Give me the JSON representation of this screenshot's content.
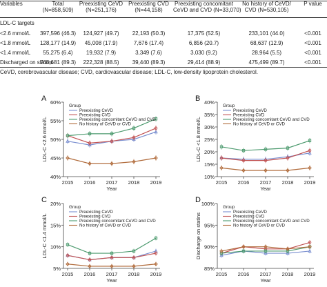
{
  "table": {
    "headers": [
      [
        "Variables"
      ],
      [
        "Total",
        "(N=858,509)"
      ],
      [
        "Preexisting CeVD",
        "(N=251,176)"
      ],
      [
        "Preexisting CVD",
        "(N=44,158)"
      ],
      [
        "Preexisting concomitant",
        "CeVD and CVD (N=33,070)"
      ],
      [
        "No history of CeVD/",
        "CVD (N=530,105)"
      ],
      [
        "P value"
      ]
    ],
    "rows": [
      [
        "LDL-C targets",
        "",
        "",
        "",
        "",
        "",
        ""
      ],
      [
        "<2.6 mmol/L",
        "397,596 (46.3)",
        "124,927 (49.7)",
        "22,193 (50.3)",
        "17,375 (52.5)",
        "233,101 (44.0)",
        "<0.001"
      ],
      [
        "<1.8 mmol/L",
        "128,177 (14.9)",
        "45,008 (17.9)",
        "7,676 (17.4)",
        "6,856 (20.7)",
        "68,637 (12.9)",
        "<0.001"
      ],
      [
        "<1.4 mmol/L",
        "55,275 (6.4)",
        "19,932 (7.9)",
        "3,349 (7.6)",
        "3,030 (9.2)",
        "28,964 (5.5)",
        "<0.001"
      ],
      [
        "Discharged on statins",
        "766,681 (89.3)",
        "222,328 (88.5)",
        "39,440 (89.3)",
        "29,414 (88.9)",
        "475,499 (89.7)",
        "<0.001"
      ]
    ],
    "footnote": "CeVD, cerebrovascular disease; CVD, cardiovascular disease; LDL-C, low-density lipoprotein cholesterol."
  },
  "chart_data": [
    {
      "panel": "A",
      "type": "line",
      "ylabel": "LDL-C <2.6 mmol/L",
      "xlabel": "Year",
      "x": [
        2015,
        2016,
        2017,
        2018,
        2019
      ],
      "ylim": [
        40,
        60
      ],
      "yticks": [
        40,
        45,
        50,
        55,
        60
      ],
      "ytick_suffix": "%",
      "legend_title": "Group",
      "legend_position": "top-left",
      "series": [
        {
          "name": "Preexisting CeVD",
          "color": "#7a8fd0",
          "values": [
            49.5,
            48.5,
            49.5,
            50.0,
            52.0
          ]
        },
        {
          "name": "Preexisting CVD",
          "color": "#c05050",
          "values": [
            51.0,
            49.0,
            49.5,
            50.5,
            53.0
          ]
        },
        {
          "name": "Preexisting concomitant CeVD and CVD",
          "color": "#4c9a6e",
          "values": [
            51.0,
            51.5,
            51.5,
            53.0,
            55.5
          ]
        },
        {
          "name": "No history of CeVD or CVD",
          "color": "#b06a3a",
          "values": [
            45.0,
            43.5,
            43.5,
            44.0,
            45.0
          ]
        }
      ]
    },
    {
      "panel": "B",
      "type": "line",
      "ylabel": "LDL-C <1.8 mmol/L",
      "xlabel": "Year",
      "x": [
        2015,
        2016,
        2017,
        2018,
        2019
      ],
      "ylim": [
        10,
        40
      ],
      "yticks": [
        10,
        15,
        20,
        25,
        30,
        35,
        40
      ],
      "ytick_suffix": "%",
      "legend_title": "Group",
      "legend_position": "top-left",
      "series": [
        {
          "name": "Preexisting CeVD",
          "color": "#7a8fd0",
          "values": [
            17.5,
            17.0,
            17.0,
            18.0,
            19.5
          ]
        },
        {
          "name": "Preexisting CVD",
          "color": "#c05050",
          "values": [
            17.5,
            16.5,
            16.5,
            17.5,
            20.5
          ]
        },
        {
          "name": "Preexisting concomitant CeVD and CVD",
          "color": "#4c9a6e",
          "values": [
            22.0,
            20.5,
            21.0,
            21.5,
            24.5
          ]
        },
        {
          "name": "No history of CeVD or CVD",
          "color": "#b06a3a",
          "values": [
            13.5,
            12.5,
            12.5,
            12.5,
            13.5
          ]
        }
      ]
    },
    {
      "panel": "C",
      "type": "line",
      "ylabel": "LDL-C <1.4 mmol/L",
      "xlabel": "Year",
      "x": [
        2015,
        2016,
        2017,
        2018,
        2019
      ],
      "ylim": [
        5,
        20
      ],
      "yticks": [
        5,
        10,
        15,
        20
      ],
      "ytick_suffix": "%",
      "legend_title": "Group",
      "legend_position": "top-left",
      "series": [
        {
          "name": "Preexisting CeVD",
          "color": "#7a8fd0",
          "values": [
            8.0,
            7.0,
            7.5,
            7.5,
            9.0
          ]
        },
        {
          "name": "Preexisting CVD",
          "color": "#c05050",
          "values": [
            8.0,
            7.0,
            7.5,
            7.5,
            8.5
          ]
        },
        {
          "name": "Preexisting concomitant CeVD and CVD",
          "color": "#4c9a6e",
          "values": [
            10.5,
            8.5,
            8.5,
            9.0,
            12.0
          ]
        },
        {
          "name": "No history of CeVD or CVD",
          "color": "#b06a3a",
          "values": [
            6.0,
            5.5,
            5.5,
            5.5,
            6.0
          ]
        }
      ]
    },
    {
      "panel": "D",
      "type": "line",
      "ylabel": "Discharge on statins",
      "xlabel": "Year",
      "x": [
        2015,
        2016,
        2017,
        2018,
        2019
      ],
      "ylim": [
        85,
        100
      ],
      "yticks": [
        85,
        90,
        95,
        100
      ],
      "ytick_suffix": "%",
      "legend_title": "Group",
      "legend_position": "top-left",
      "series": [
        {
          "name": "Preexisting CeVD",
          "color": "#7a8fd0",
          "values": [
            88.0,
            89.0,
            88.5,
            88.5,
            89.0
          ]
        },
        {
          "name": "Preexisting CVD",
          "color": "#c05050",
          "values": [
            88.5,
            90.0,
            89.5,
            89.5,
            91.0
          ]
        },
        {
          "name": "Preexisting concomitant CeVD and CVD",
          "color": "#4c9a6e",
          "values": [
            88.5,
            89.0,
            89.0,
            89.0,
            90.0
          ]
        },
        {
          "name": "No history of CeVD or CVD",
          "color": "#b06a3a",
          "values": [
            89.0,
            90.0,
            90.0,
            89.5,
            90.0
          ]
        }
      ]
    }
  ]
}
